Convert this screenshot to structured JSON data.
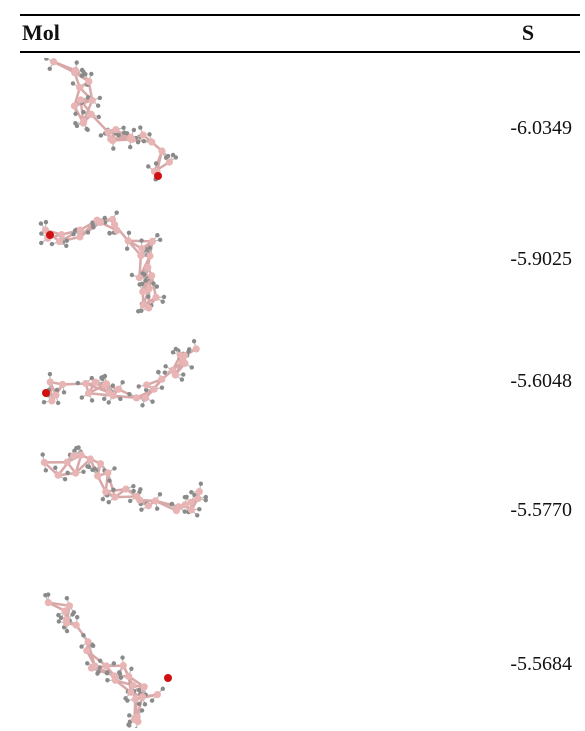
{
  "header": {
    "mol_label": "Mol",
    "score_label": "S"
  },
  "rows": [
    {
      "score": "-6.0349",
      "hetero_atom_color": "#d01010"
    },
    {
      "score": "-5.9025",
      "hetero_atom_color": "#d01010"
    },
    {
      "score": "-5.6048",
      "hetero_atom_color": "#d01010"
    },
    {
      "score": "-5.5770",
      "hetero_atom_color": "#d01010"
    },
    {
      "score": "-5.5684",
      "hetero_atom_color": "#d01010"
    }
  ],
  "colors": {
    "carbon": "#e8b4b4",
    "hydrogen": "#8a8a8a",
    "bond": "#d9a8a8"
  }
}
